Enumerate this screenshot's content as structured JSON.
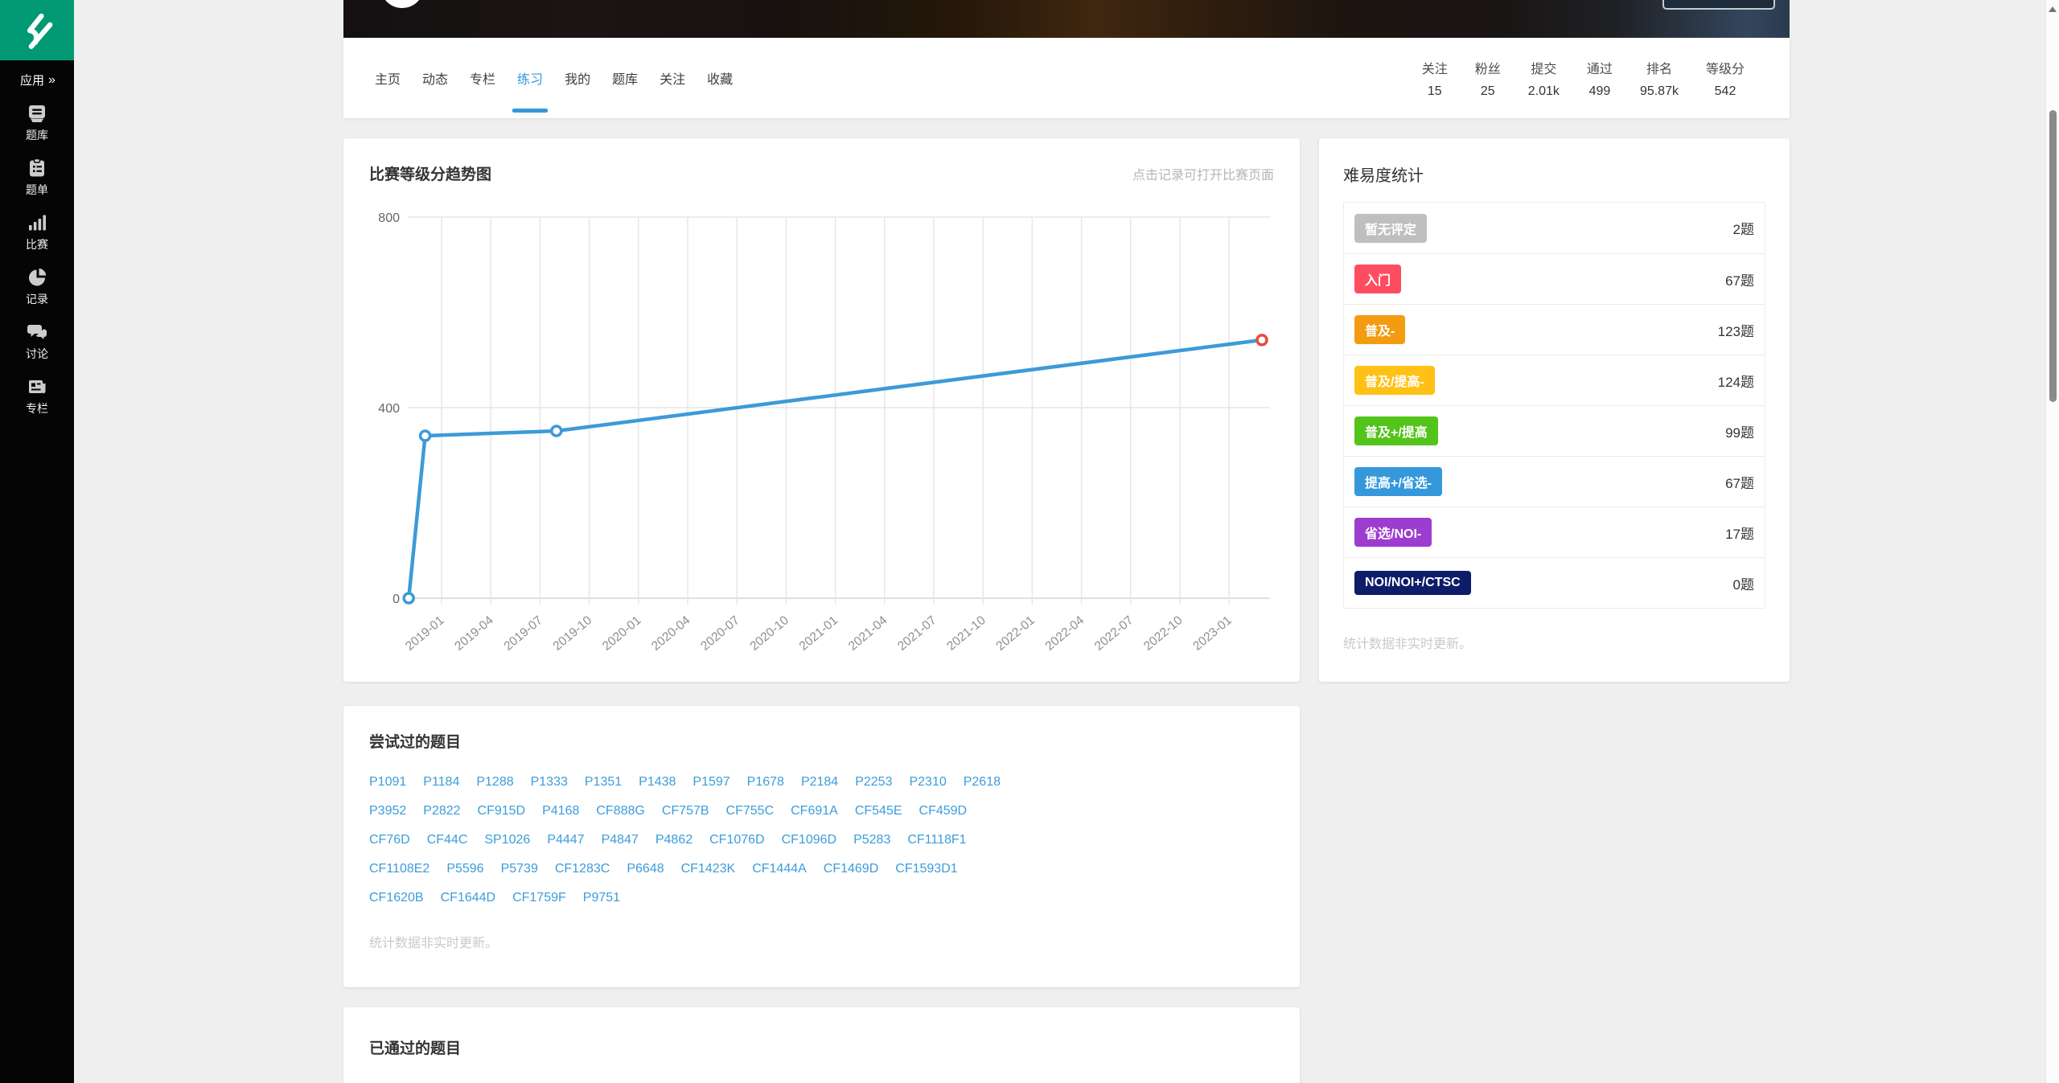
{
  "colors": {
    "accent": "#3498db",
    "sidebar_bg": "#050505",
    "logo_bg": "#009973",
    "link_blue": "#3b9ddb"
  },
  "sidebar": {
    "app_label": "应用",
    "app_arrow": "»",
    "items": [
      {
        "icon": "library-icon",
        "label": "题库"
      },
      {
        "icon": "list-icon",
        "label": "题单"
      },
      {
        "icon": "contest-icon",
        "label": "比赛"
      },
      {
        "icon": "record-icon",
        "label": "记录"
      },
      {
        "icon": "discuss-icon",
        "label": "讨论"
      },
      {
        "icon": "column-icon",
        "label": "专栏"
      }
    ]
  },
  "nav": {
    "tabs": [
      {
        "label": "主页",
        "active": false
      },
      {
        "label": "动态",
        "active": false
      },
      {
        "label": "专栏",
        "active": false
      },
      {
        "label": "练习",
        "active": true
      },
      {
        "label": "我的",
        "active": false
      },
      {
        "label": "题库",
        "active": false
      },
      {
        "label": "关注",
        "active": false
      },
      {
        "label": "收藏",
        "active": false
      }
    ],
    "stats": [
      {
        "label": "关注",
        "value": "15"
      },
      {
        "label": "粉丝",
        "value": "25"
      },
      {
        "label": "提交",
        "value": "2.01k"
      },
      {
        "label": "通过",
        "value": "499"
      },
      {
        "label": "排名",
        "value": "95.87k"
      },
      {
        "label": "等级分",
        "value": "542"
      }
    ]
  },
  "rating_card": {
    "title": "比赛等级分趋势图",
    "hint": "点击记录可打开比赛页面"
  },
  "chart_data": {
    "type": "line",
    "title": "比赛等级分趋势图",
    "x_ticks": [
      "2019-01",
      "2019-04",
      "2019-07",
      "2019-10",
      "2020-01",
      "2020-04",
      "2020-07",
      "2020-10",
      "2021-01",
      "2021-04",
      "2021-07",
      "2021-10",
      "2022-01",
      "2022-04",
      "2022-07",
      "2022-10",
      "2023-01"
    ],
    "x_axis_range": [
      "2018-11",
      "2023-03"
    ],
    "y_ticks": [
      0,
      400,
      800
    ],
    "ylim": [
      0,
      800
    ],
    "points": [
      {
        "date": "2018-11",
        "rating": 0
      },
      {
        "date": "2018-12",
        "rating": 341
      },
      {
        "date": "2019-08",
        "rating": 351
      },
      {
        "date": "2023-03",
        "rating": 542
      }
    ],
    "line_color": "#3D9AD8",
    "point_color": "#3D9AD8",
    "last_point_color": "#E74C3C",
    "grid": true,
    "legend": "none"
  },
  "difficulty_card": {
    "title": "难易度统计",
    "rows": [
      {
        "label": "暂无评定",
        "count": "2题",
        "color": "#BFBFBF"
      },
      {
        "label": "入门",
        "count": "67题",
        "color": "#FE4C61"
      },
      {
        "label": "普及-",
        "count": "123题",
        "color": "#F39C11"
      },
      {
        "label": "普及/提高-",
        "count": "124题",
        "color": "#FFC116"
      },
      {
        "label": "普及+/提高",
        "count": "99题",
        "color": "#52C41A"
      },
      {
        "label": "提高+/省选-",
        "count": "67题",
        "color": "#3498DB"
      },
      {
        "label": "省选/NOI-",
        "count": "17题",
        "color": "#9D3DCF"
      },
      {
        "label": "NOI/NOI+/CTSC",
        "count": "0题",
        "color": "#0E1D69"
      }
    ],
    "note": "统计数据非实时更新。"
  },
  "attempted_card": {
    "title": "尝试过的题目",
    "rows": [
      [
        "P1091",
        "P1184",
        "P1288",
        "P1333",
        "P1351",
        "P1438",
        "P1597",
        "P1678",
        "P2184",
        "P2253",
        "P2310",
        "P2618"
      ],
      [
        "P3952",
        "P2822",
        "CF915D",
        "P4168",
        "CF888G",
        "CF757B",
        "CF755C",
        "CF691A",
        "CF545E",
        "CF459D"
      ],
      [
        "CF76D",
        "CF44C",
        "SP1026",
        "P4447",
        "P4847",
        "P4862",
        "CF1076D",
        "CF1096D",
        "P5283",
        "CF1118F1"
      ],
      [
        "CF1108E2",
        "P5596",
        "P5739",
        "CF1283C",
        "P6648",
        "CF1423K",
        "CF1444A",
        "CF1469D",
        "CF1593D1"
      ],
      [
        "CF1620B",
        "CF1644D",
        "CF1759F",
        "P9751"
      ]
    ],
    "note": "统计数据非实时更新。"
  },
  "passed_card": {
    "title": "已通过的题目"
  }
}
